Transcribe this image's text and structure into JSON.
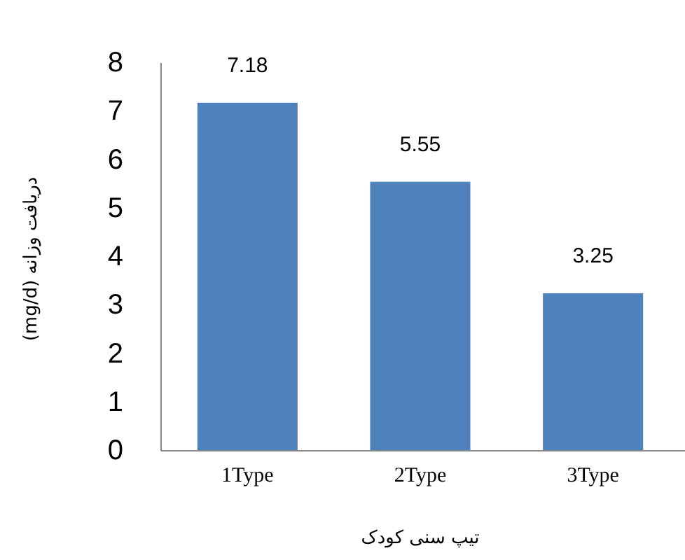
{
  "chart_data": {
    "type": "bar",
    "xlabel": "تیپ سنی کودک",
    "ylabel": "دریافت وزانه (mg/d)",
    "categories": [
      "1Type",
      "2Type",
      "3Type"
    ],
    "values": [
      7.18,
      5.55,
      3.25
    ],
    "color": "#4f81bd",
    "data_labels": true,
    "ylim": [
      0,
      8
    ],
    "yticks": [
      0,
      1,
      2,
      3,
      4,
      5,
      6,
      7,
      8
    ]
  }
}
